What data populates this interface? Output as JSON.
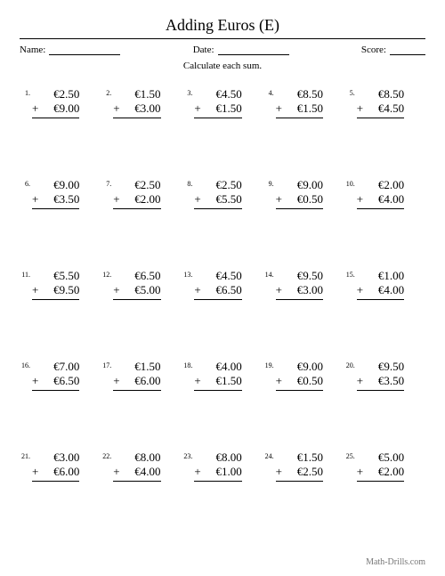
{
  "title": "Adding Euros (E)",
  "labels": {
    "name": "Name:",
    "date": "Date:",
    "score": "Score:"
  },
  "instruction": "Calculate each sum.",
  "currency_symbol": "€",
  "operator": "+",
  "footer": "Math-Drills.com",
  "problems": [
    {
      "n": "1.",
      "a": "2.50",
      "b": "9.00"
    },
    {
      "n": "2.",
      "a": "1.50",
      "b": "3.00"
    },
    {
      "n": "3.",
      "a": "4.50",
      "b": "1.50"
    },
    {
      "n": "4.",
      "a": "8.50",
      "b": "1.50"
    },
    {
      "n": "5.",
      "a": "8.50",
      "b": "4.50"
    },
    {
      "n": "6.",
      "a": "9.00",
      "b": "3.50"
    },
    {
      "n": "7.",
      "a": "2.50",
      "b": "2.00"
    },
    {
      "n": "8.",
      "a": "2.50",
      "b": "5.50"
    },
    {
      "n": "9.",
      "a": "9.00",
      "b": "0.50"
    },
    {
      "n": "10.",
      "a": "2.00",
      "b": "4.00"
    },
    {
      "n": "11.",
      "a": "5.50",
      "b": "9.50"
    },
    {
      "n": "12.",
      "a": "6.50",
      "b": "5.00"
    },
    {
      "n": "13.",
      "a": "4.50",
      "b": "6.50"
    },
    {
      "n": "14.",
      "a": "9.50",
      "b": "3.00"
    },
    {
      "n": "15.",
      "a": "1.00",
      "b": "4.00"
    },
    {
      "n": "16.",
      "a": "7.00",
      "b": "6.50"
    },
    {
      "n": "17.",
      "a": "1.50",
      "b": "6.00"
    },
    {
      "n": "18.",
      "a": "4.00",
      "b": "1.50"
    },
    {
      "n": "19.",
      "a": "9.00",
      "b": "0.50"
    },
    {
      "n": "20.",
      "a": "9.50",
      "b": "3.50"
    },
    {
      "n": "21.",
      "a": "3.00",
      "b": "6.00"
    },
    {
      "n": "22.",
      "a": "8.00",
      "b": "4.00"
    },
    {
      "n": "23.",
      "a": "8.00",
      "b": "1.00"
    },
    {
      "n": "24.",
      "a": "1.50",
      "b": "2.50"
    },
    {
      "n": "25.",
      "a": "5.00",
      "b": "2.00"
    }
  ]
}
